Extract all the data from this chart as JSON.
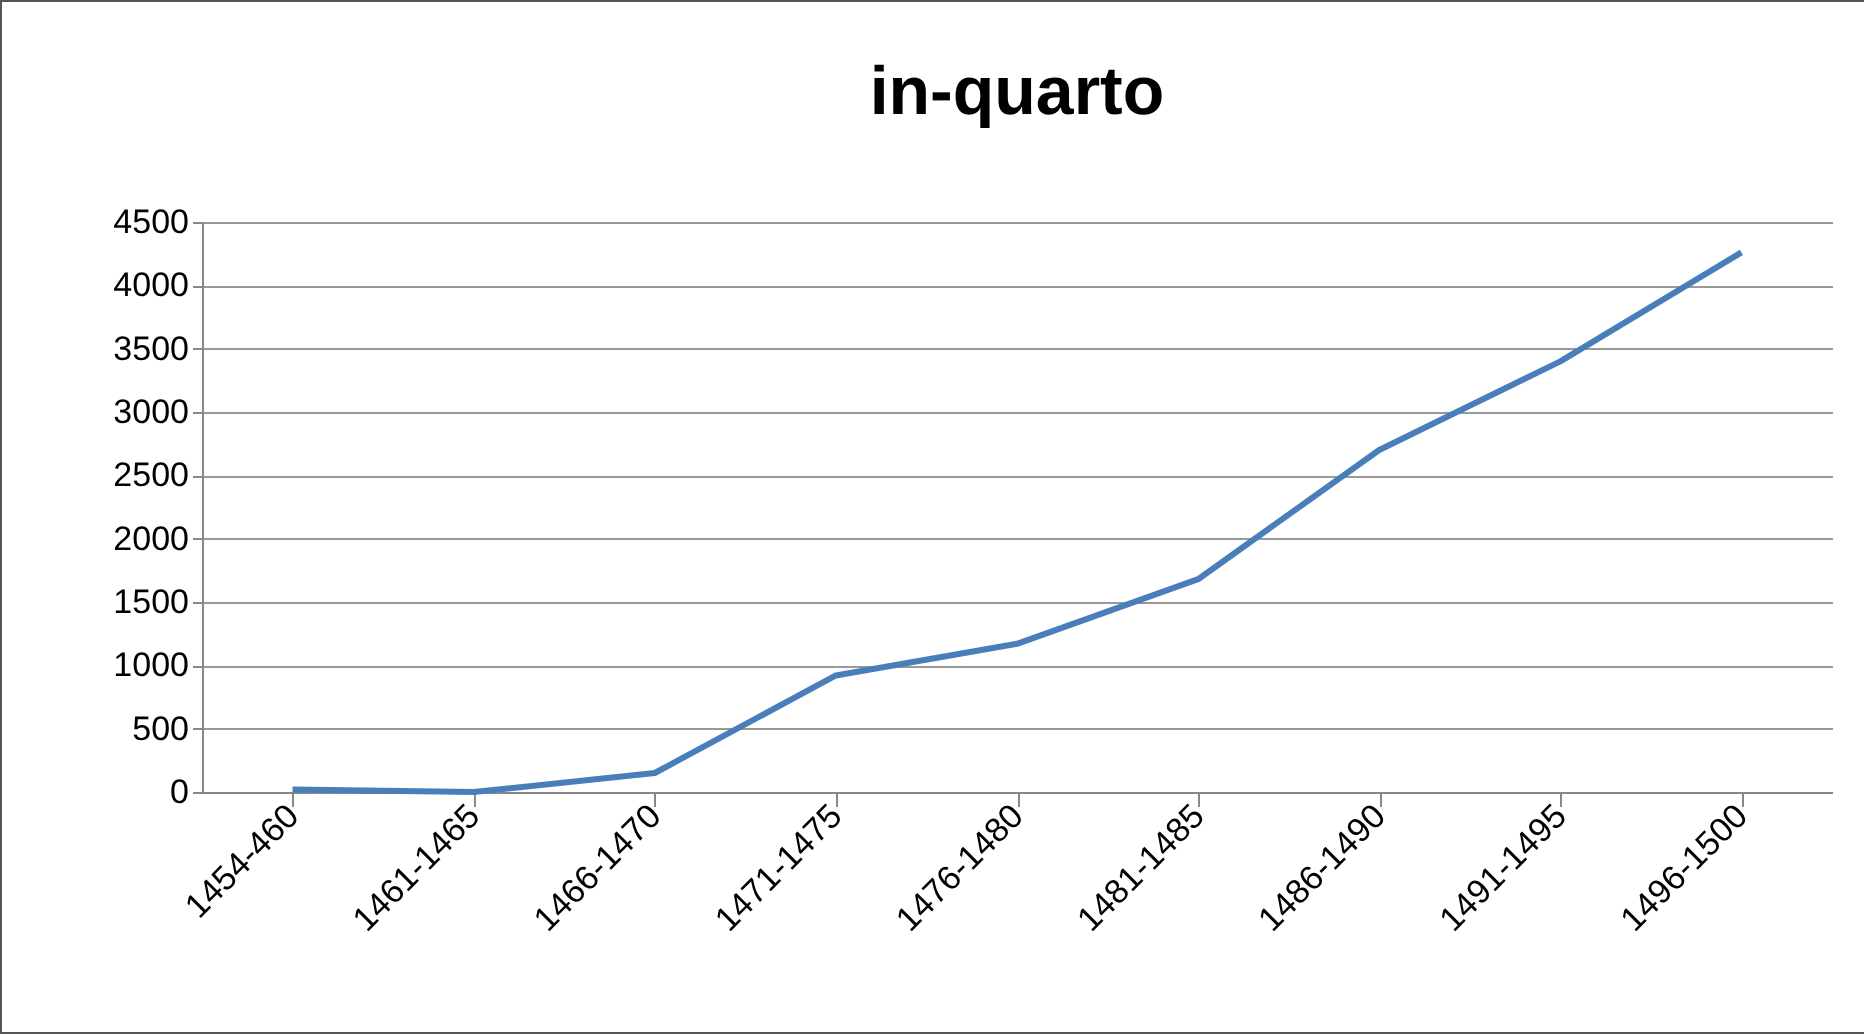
{
  "chart_data": {
    "type": "line",
    "title": "in-quarto",
    "categories": [
      "1454-460",
      "1461-1465",
      "1466-1470",
      "1471-1475",
      "1476-1480",
      "1481-1485",
      "1486-1490",
      "1491-1495",
      "1496-1500"
    ],
    "series": [
      {
        "color": "#4a7ebb",
        "values": [
          20,
          0,
          150,
          920,
          1170,
          1680,
          2700,
          3400,
          4260
        ]
      }
    ],
    "ylim": [
      0,
      4500
    ],
    "yticks": [
      0,
      500,
      1000,
      1500,
      2000,
      2500,
      3000,
      3500,
      4000,
      4500
    ],
    "grid": "y",
    "legend": false,
    "marker": "none",
    "line_style": "solid"
  }
}
